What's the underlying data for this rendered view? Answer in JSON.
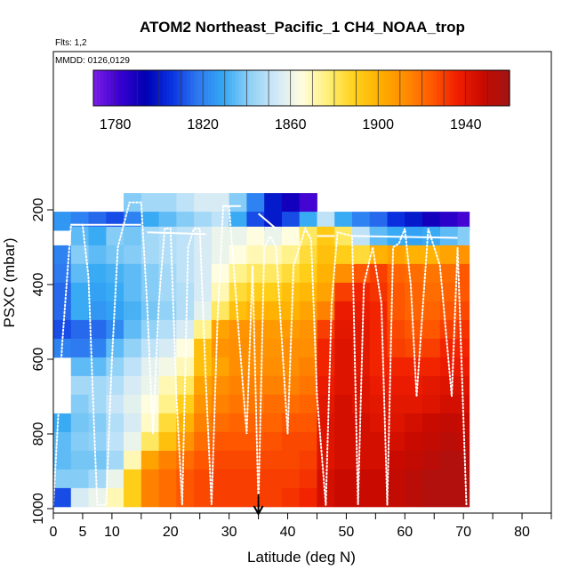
{
  "chart_data": {
    "type": "heatmap",
    "title": "ATOM2 Northeast_Pacific_1 CH4_NOAA_trop",
    "flights_note": "Flts: 1,2",
    "date_note": "MMDD: 0126,0129",
    "xlabel": "Latitude (deg N)",
    "ylabel": "PSXC (mbar)",
    "xlim": [
      0,
      85
    ],
    "ylim": [
      1000,
      0
    ],
    "x_ticks": [
      0,
      5,
      10,
      20,
      30,
      40,
      50,
      60,
      70,
      80
    ],
    "y_ticks": [
      200,
      400,
      600,
      800,
      1000
    ],
    "marker_latitude": 35,
    "colorbar": {
      "range": [
        1770,
        1960
      ],
      "tick_values": [
        1780,
        1820,
        1860,
        1900,
        1940
      ],
      "colors": [
        "#7a1ee6",
        "#3a00d0",
        "#0000b4",
        "#0a32e0",
        "#2e78f0",
        "#34a8f4",
        "#8ed0f6",
        "#cfe8f8",
        "#fffde0",
        "#fff07a",
        "#ffd21c",
        "#ffb000",
        "#ff8c00",
        "#ff5a00",
        "#f01e00",
        "#c80a00",
        "#a01414"
      ]
    },
    "rows_pressure": [
      180,
      230,
      270,
      320,
      370,
      420,
      470,
      520,
      570,
      620,
      670,
      720,
      770,
      820,
      870,
      920,
      970
    ],
    "columns": [
      {
        "lat": [
          0,
          3
        ],
        "values": [
          null,
          1825,
          null,
          1820,
          1818,
          1815,
          1815,
          1810,
          1820,
          null,
          null,
          null,
          1830,
          1835,
          1835,
          1840,
          1810
        ]
      },
      {
        "lat": [
          3,
          6
        ],
        "values": [
          null,
          1820,
          1835,
          1840,
          1835,
          1830,
          1830,
          1815,
          1818,
          1835,
          1845,
          1840,
          1838,
          1840,
          1838,
          1840,
          1855
        ]
      },
      {
        "lat": [
          6,
          9
        ],
        "values": [
          null,
          1815,
          1830,
          1835,
          1830,
          1828,
          1825,
          1815,
          1820,
          1835,
          1845,
          1845,
          1840,
          1842,
          1838,
          1845,
          1860
        ]
      },
      {
        "lat": [
          9,
          12
        ],
        "values": [
          null,
          1810,
          1840,
          1838,
          1832,
          1830,
          1828,
          1822,
          1835,
          1842,
          1848,
          1852,
          1848,
          1850,
          1845,
          1860,
          1870
        ]
      },
      {
        "lat": [
          12,
          15
        ],
        "values": [
          1840,
          1820,
          1838,
          1840,
          1835,
          1835,
          1832,
          1835,
          1842,
          1850,
          1855,
          1858,
          1855,
          1860,
          1870,
          1890,
          1890
        ]
      },
      {
        "lat": [
          15,
          18
        ],
        "values": [
          1845,
          1830,
          1845,
          1845,
          1840,
          1840,
          1838,
          1842,
          1850,
          1858,
          1860,
          1865,
          1868,
          1880,
          1905,
          1915,
          1915
        ]
      },
      {
        "lat": [
          18,
          21
        ],
        "values": [
          1845,
          1835,
          1848,
          1848,
          1845,
          1845,
          1842,
          1848,
          1855,
          1862,
          1870,
          1875,
          1885,
          1895,
          1915,
          1920,
          1920
        ]
      },
      {
        "lat": [
          21,
          24
        ],
        "values": [
          1850,
          1840,
          1850,
          1850,
          1850,
          1848,
          1848,
          1855,
          1865,
          1870,
          1880,
          1890,
          1900,
          1910,
          1920,
          1925,
          1925
        ]
      },
      {
        "lat": [
          24,
          27
        ],
        "values": [
          1855,
          1845,
          1855,
          1855,
          1855,
          1855,
          1858,
          1875,
          1895,
          1895,
          1905,
          1910,
          1915,
          1920,
          1925,
          1928,
          1928
        ]
      },
      {
        "lat": [
          27,
          30
        ],
        "values": [
          1855,
          1850,
          1860,
          1860,
          1865,
          1870,
          1880,
          1905,
          1910,
          1905,
          1912,
          1915,
          1920,
          1925,
          1928,
          1930,
          1930
        ]
      },
      {
        "lat": [
          30,
          33
        ],
        "values": [
          1840,
          1830,
          1860,
          1865,
          1875,
          1885,
          1895,
          1910,
          1912,
          1912,
          1915,
          1918,
          1922,
          1925,
          1928,
          1930,
          1930
        ]
      },
      {
        "lat": [
          33,
          36
        ],
        "values": [
          1820,
          1810,
          1865,
          1870,
          1880,
          1890,
          1900,
          1910,
          1912,
          1912,
          1915,
          1918,
          1922,
          1925,
          1928,
          1930,
          1930
        ]
      },
      {
        "lat": [
          36,
          39
        ],
        "values": [
          1800,
          1800,
          1860,
          1870,
          1880,
          1890,
          1900,
          1908,
          1910,
          1912,
          1915,
          1920,
          1922,
          1926,
          1928,
          1930,
          1930
        ]
      },
      {
        "lat": [
          39,
          42
        ],
        "values": [
          1790,
          1810,
          1865,
          1875,
          1885,
          1895,
          1900,
          1908,
          1912,
          1912,
          1915,
          1920,
          1925,
          1928,
          1928,
          1930,
          1932
        ]
      },
      {
        "lat": [
          42,
          45
        ],
        "values": [
          1780,
          1830,
          1880,
          1885,
          1890,
          1898,
          1905,
          1910,
          1912,
          1915,
          1918,
          1922,
          1925,
          1928,
          1930,
          1932,
          1935
        ]
      },
      {
        "lat": [
          45,
          48
        ],
        "values": [
          null,
          1850,
          1892,
          1895,
          1900,
          1905,
          1915,
          1930,
          1935,
          1935,
          1938,
          1940,
          1942,
          1942,
          1942,
          1945,
          1945
        ]
      },
      {
        "lat": [
          48,
          51
        ],
        "values": [
          null,
          1830,
          1880,
          1890,
          1912,
          1930,
          1938,
          1940,
          1942,
          1942,
          1942,
          1945,
          1945,
          1945,
          1945,
          1948,
          1948
        ]
      },
      {
        "lat": [
          51,
          54
        ],
        "values": [
          null,
          1820,
          1850,
          1885,
          1925,
          1935,
          1938,
          1940,
          1940,
          1940,
          1942,
          1942,
          1945,
          1945,
          1945,
          1948,
          1948
        ]
      },
      {
        "lat": [
          54,
          57
        ],
        "values": [
          null,
          1815,
          1835,
          1900,
          1930,
          1932,
          1935,
          1935,
          1935,
          1935,
          1938,
          1940,
          1942,
          1945,
          1945,
          1948,
          1948
        ]
      },
      {
        "lat": [
          57,
          60
        ],
        "values": [
          null,
          1805,
          1830,
          1905,
          1922,
          1925,
          1925,
          1928,
          1930,
          1935,
          1938,
          1940,
          1942,
          1945,
          1948,
          1950,
          1950
        ]
      },
      {
        "lat": [
          60,
          63
        ],
        "values": [
          null,
          1800,
          1828,
          1900,
          1920,
          1922,
          1922,
          1925,
          1928,
          1935,
          1938,
          1940,
          1945,
          1948,
          1950,
          1952,
          1952
        ]
      },
      {
        "lat": [
          63,
          66
        ],
        "values": [
          null,
          1790,
          1830,
          1900,
          1918,
          1920,
          1922,
          1925,
          1930,
          1935,
          1940,
          1942,
          1948,
          1950,
          1952,
          1955,
          1955
        ]
      },
      {
        "lat": [
          66,
          69
        ],
        "values": [
          null,
          1785,
          1835,
          1905,
          1920,
          1922,
          1925,
          1930,
          1935,
          1938,
          1942,
          1945,
          1950,
          1952,
          1955,
          1955,
          1955
        ]
      },
      {
        "lat": [
          69,
          71
        ],
        "values": [
          null,
          1780,
          1840,
          1910,
          1925,
          1925,
          1928,
          1932,
          1935,
          1938,
          1942,
          1945,
          1948,
          1950,
          1955,
          1955,
          1955
        ]
      }
    ],
    "flight_track": [
      [
        0,
        990
      ],
      [
        1.5,
        560
      ],
      [
        3,
        240
      ],
      [
        5,
        240
      ],
      [
        6,
        380
      ],
      [
        7,
        800
      ],
      [
        7.5,
        990
      ],
      [
        9,
        990
      ],
      [
        10,
        600
      ],
      [
        11,
        300
      ],
      [
        13,
        180
      ],
      [
        15,
        180
      ],
      [
        16,
        450
      ],
      [
        17,
        800
      ],
      [
        18,
        450
      ],
      [
        19,
        250
      ],
      [
        20,
        250
      ],
      [
        21,
        700
      ],
      [
        22,
        990
      ],
      [
        23,
        300
      ],
      [
        24,
        250
      ],
      [
        25,
        250
      ],
      [
        26,
        650
      ],
      [
        27,
        990
      ],
      [
        28,
        500
      ],
      [
        29,
        190
      ],
      [
        30,
        190
      ],
      [
        31.5,
        500
      ],
      [
        33,
        800
      ],
      [
        34,
        350
      ],
      [
        35,
        990
      ],
      [
        36,
        300
      ],
      [
        37,
        270
      ],
      [
        38,
        300
      ],
      [
        40,
        800
      ],
      [
        41,
        350
      ],
      [
        43,
        250
      ],
      [
        44,
        280
      ],
      [
        45,
        700
      ],
      [
        46.5,
        990
      ],
      [
        47.5,
        450
      ],
      [
        48.5,
        260
      ],
      [
        51,
        270
      ],
      [
        52,
        990
      ],
      [
        53,
        400
      ],
      [
        54.5,
        300
      ],
      [
        56,
        450
      ],
      [
        57,
        990
      ],
      [
        58,
        300
      ],
      [
        59,
        290
      ],
      [
        60,
        250
      ],
      [
        61,
        400
      ],
      [
        62,
        700
      ],
      [
        64,
        250
      ],
      [
        66,
        350
      ],
      [
        68,
        700
      ],
      [
        69,
        300
      ],
      [
        70.5,
        990
      ]
    ],
    "track_segments_upper": [
      [
        [
          3,
          240
        ],
        [
          15,
          240
        ]
      ],
      [
        [
          16,
          260
        ],
        [
          26,
          265
        ]
      ],
      [
        [
          29,
          190
        ],
        [
          32,
          190
        ]
      ],
      [
        [
          35,
          210
        ],
        [
          38,
          250
        ]
      ],
      [
        [
          45,
          270
        ],
        [
          48,
          270
        ]
      ],
      [
        [
          51,
          270
        ],
        [
          69,
          275
        ]
      ]
    ]
  }
}
